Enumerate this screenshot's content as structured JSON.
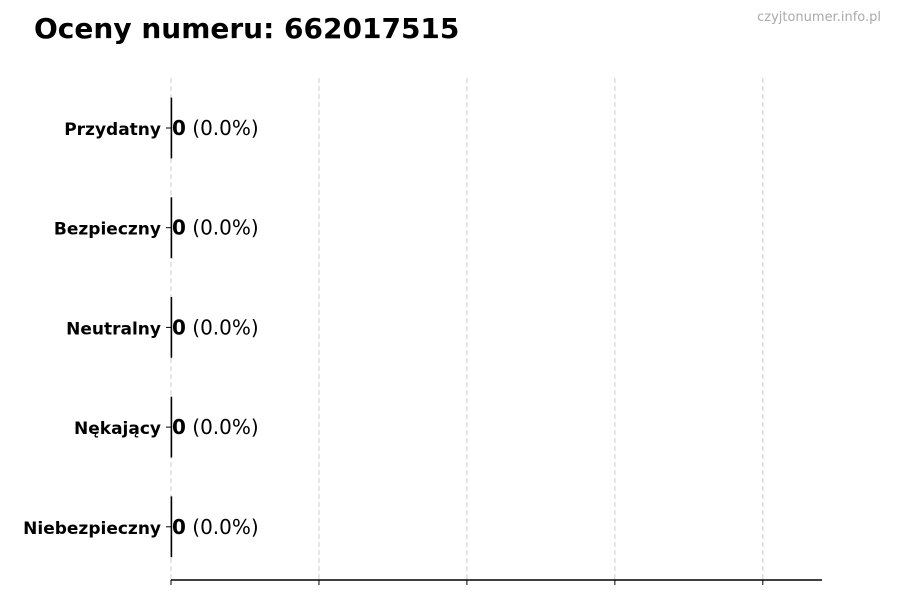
{
  "title": "Oceny numeru: 662017515",
  "watermark": "czyjtonumer.info.pl",
  "chart_data": {
    "type": "bar",
    "orientation": "horizontal",
    "title": "Oceny numeru: 662017515",
    "categories": [
      "Przydatny",
      "Bezpieczny",
      "Neutralny",
      "Nękający",
      "Niebezpieczny"
    ],
    "values": [
      0,
      0,
      0,
      0,
      0
    ],
    "data_labels": [
      "0 (0.0%)",
      "0 (0.0%)",
      "0 (0.0%)",
      "0 (0.0%)",
      "0 (0.0%)"
    ],
    "counts_labels": [
      "0",
      "0",
      "0",
      "0",
      "0"
    ],
    "percent_labels": [
      "(0.0%)",
      "(0.0%)",
      "(0.0%)",
      "(0.0%)",
      "(0.0%)"
    ],
    "xlim": [
      0,
      4.4
    ],
    "xticks": [
      0,
      1,
      2,
      3,
      4
    ],
    "xtick_labels_shown": false,
    "grid": "vertical dashed",
    "colors": {
      "bar_edge": "#000000",
      "grid": "#cccccc",
      "watermark": "#aaaaaa"
    }
  }
}
